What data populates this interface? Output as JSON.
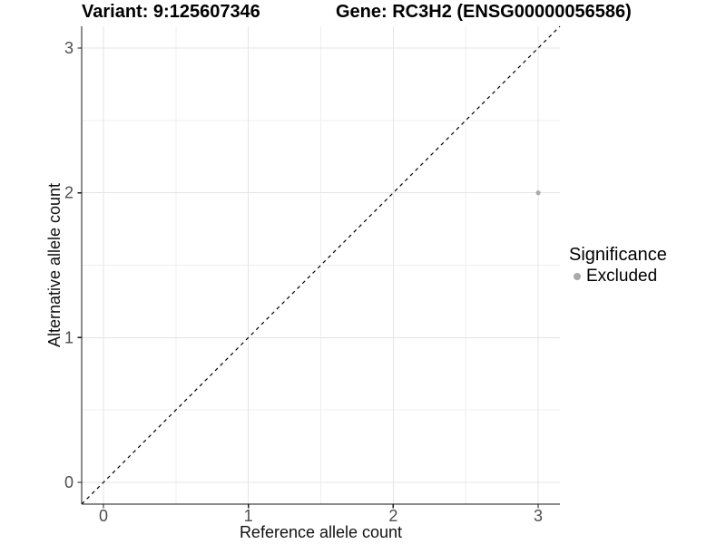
{
  "chart_data": {
    "type": "scatter",
    "titles": {
      "left": "Variant: 9:125607346",
      "right": "Gene: RC3H2 (ENSG00000056586)"
    },
    "xlabel": "Reference allele count",
    "ylabel": "Alternative allele count",
    "xlim": [
      -0.15,
      3.15
    ],
    "ylim": [
      -0.15,
      3.15
    ],
    "x_ticks": [
      0,
      1,
      2,
      3
    ],
    "y_ticks": [
      0,
      1,
      2,
      3
    ],
    "x_minor_ticks": [
      0.5,
      1.5,
      2.5
    ],
    "y_minor_ticks": [
      0.5,
      1.5,
      2.5
    ],
    "grid": true,
    "series": [
      {
        "name": "Excluded",
        "color": "#aaaaaa",
        "points": [
          {
            "x": 3,
            "y": 2
          }
        ],
        "point_radius": 2.6
      }
    ],
    "identity_line": {
      "show": true,
      "style": "dashed",
      "color": "#000000"
    },
    "legend": {
      "title": "Significance",
      "position": "right",
      "entries": [
        {
          "label": "Excluded",
          "color": "#aaaaaa"
        }
      ]
    },
    "colors": {
      "background": "#ffffff",
      "grid_major": "#e4e4e4",
      "grid_minor": "#efefef",
      "spine": "#1a1a1a",
      "tick_mark": "#1a1a1a",
      "tick_label": "#4d4d4d"
    }
  }
}
